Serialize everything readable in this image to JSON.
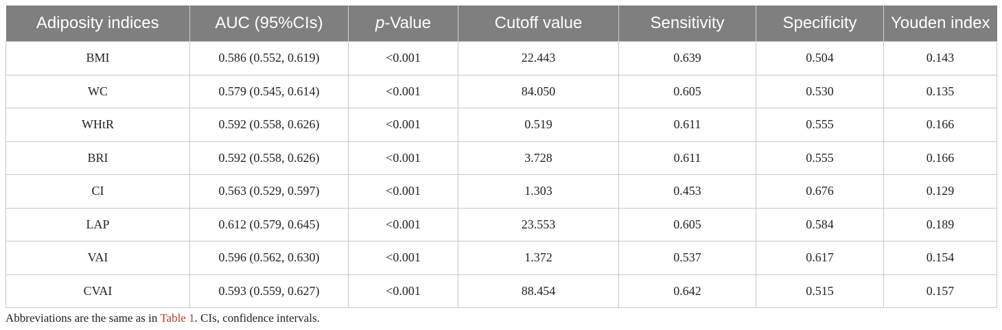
{
  "table": {
    "headers": [
      "Adiposity indices",
      "AUC (95%CIs)",
      "-Value",
      "Cutoff value",
      "Sensitivity",
      "Specificity",
      "Youden index"
    ],
    "p_symbol": "p",
    "rows": [
      [
        "BMI",
        "0.586 (0.552, 0.619)",
        "<0.001",
        "22.443",
        "0.639",
        "0.504",
        "0.143"
      ],
      [
        "WC",
        "0.579 (0.545, 0.614)",
        "<0.001",
        "84.050",
        "0.605",
        "0.530",
        "0.135"
      ],
      [
        "WHtR",
        "0.592 (0.558, 0.626)",
        "<0.001",
        "0.519",
        "0.611",
        "0.555",
        "0.166"
      ],
      [
        "BRI",
        "0.592 (0.558, 0.626)",
        "<0.001",
        "3.728",
        "0.611",
        "0.555",
        "0.166"
      ],
      [
        "CI",
        "0.563 (0.529, 0.597)",
        "<0.001",
        "1.303",
        "0.453",
        "0.676",
        "0.129"
      ],
      [
        "LAP",
        "0.612 (0.579, 0.645)",
        "<0.001",
        "23.553",
        "0.605",
        "0.584",
        "0.189"
      ],
      [
        "VAI",
        "0.596 (0.562, 0.630)",
        "<0.001",
        "1.372",
        "0.537",
        "0.617",
        "0.154"
      ],
      [
        "CVAI",
        "0.593 (0.559, 0.627)",
        "<0.001",
        "88.454",
        "0.642",
        "0.515",
        "0.157"
      ]
    ]
  },
  "footnote": {
    "before": "Abbreviations are the same as in ",
    "link": "Table 1",
    "after": ". CIs, confidence intervals."
  },
  "colors": {
    "header_bg": "#7f7f7f",
    "link": "#c0392b"
  }
}
